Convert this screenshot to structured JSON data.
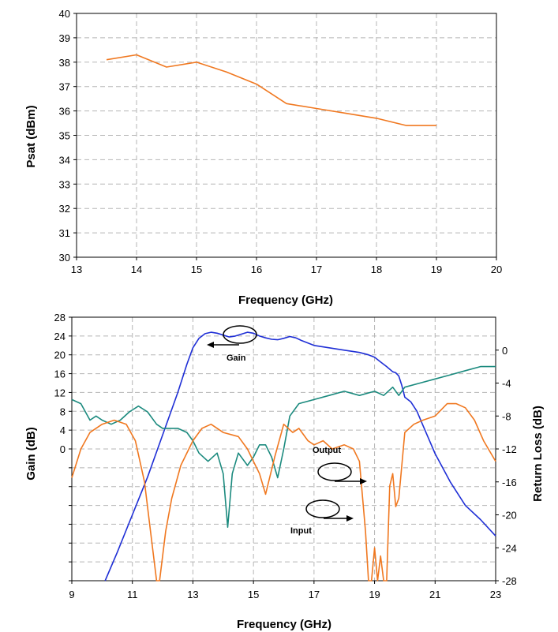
{
  "chart_data": [
    {
      "type": "line",
      "xlabel": "Frequency (GHz)",
      "ylabel": "Psat (dBm)",
      "xlim": [
        13,
        20
      ],
      "ylim": [
        30,
        40
      ],
      "xticks": [
        13,
        14,
        15,
        16,
        17,
        18,
        19,
        20
      ],
      "yticks": [
        30,
        31,
        32,
        33,
        34,
        35,
        36,
        37,
        38,
        39,
        40
      ],
      "grid": true,
      "series": [
        {
          "color": "#f07820",
          "x": [
            13.5,
            14,
            14.5,
            15,
            15.5,
            16,
            16.5,
            17,
            17.5,
            18,
            18.5,
            19
          ],
          "y": [
            38.1,
            38.3,
            37.8,
            38.0,
            37.6,
            37.1,
            36.3,
            36.1,
            35.9,
            35.7,
            35.4,
            35.4
          ]
        }
      ]
    },
    {
      "type": "line",
      "xlabel": "Frequency (GHz)",
      "ylabel": "Gain (dB)",
      "y2label": "Return Loss (dB)",
      "xlim": [
        9,
        23
      ],
      "ylim": [
        -28,
        28
      ],
      "y2lim": [
        -28,
        4
      ],
      "xticks": [
        9,
        11,
        13,
        15,
        17,
        19,
        21,
        23
      ],
      "yticks_left": [
        0,
        4,
        8,
        12,
        16,
        20,
        24,
        28
      ],
      "yticks_right": [
        0,
        -4,
        -8,
        -12,
        -16,
        -20,
        -24,
        -28
      ],
      "grid": true,
      "series": [
        {
          "name": "Gain",
          "axis": "left",
          "color": "#1f2fd6",
          "x": [
            10.1,
            10.5,
            11.0,
            11.5,
            12.0,
            12.5,
            12.8,
            13.0,
            13.2,
            13.4,
            13.6,
            13.8,
            14.0,
            14.2,
            14.4,
            14.6,
            14.8,
            15.0,
            15.2,
            15.4,
            15.6,
            15.8,
            16.0,
            16.2,
            16.4,
            16.6,
            16.8,
            17.0,
            17.5,
            18.0,
            18.5,
            18.8,
            19.0,
            19.2,
            19.4,
            19.6,
            19.7,
            19.8,
            19.9,
            20.0,
            20.2,
            20.4,
            20.6,
            20.8,
            21.0,
            21.5,
            22.0,
            22.5,
            23.0
          ],
          "y": [
            -28,
            -22,
            -14,
            -6,
            3,
            12,
            18,
            21.5,
            23.5,
            24.5,
            24.8,
            24.6,
            24.2,
            23.8,
            24.0,
            24.4,
            24.8,
            24.6,
            24.0,
            23.6,
            23.3,
            23.2,
            23.5,
            23.9,
            23.6,
            23.0,
            22.5,
            22.0,
            21.5,
            21.0,
            20.5,
            20.0,
            19.5,
            18.5,
            17.5,
            16.4,
            16.2,
            15.5,
            13.5,
            11.0,
            10.0,
            8.0,
            5.0,
            2.0,
            -1.0,
            -7.0,
            -12.0,
            -15.0,
            -18.5
          ]
        },
        {
          "name": "Output",
          "axis": "right",
          "color": "#1b8a7e",
          "x": [
            9.0,
            9.3,
            9.6,
            9.8,
            10.0,
            10.3,
            10.6,
            10.9,
            11.2,
            11.5,
            11.8,
            12.0,
            12.5,
            12.8,
            13.0,
            13.2,
            13.5,
            13.8,
            14.0,
            14.15,
            14.3,
            14.5,
            14.8,
            15.0,
            15.2,
            15.4,
            15.6,
            15.8,
            16.0,
            16.2,
            16.5,
            17.0,
            17.5,
            18.0,
            18.5,
            19.0,
            19.3,
            19.6,
            19.8,
            20.0,
            20.5,
            21.0,
            21.5,
            22.0,
            22.5,
            23.0
          ],
          "y": [
            -6.0,
            -6.5,
            -8.5,
            -8.0,
            -8.5,
            -9.0,
            -8.5,
            -7.5,
            -6.8,
            -7.5,
            -9.0,
            -9.5,
            -9.5,
            -10.0,
            -11.0,
            -12.5,
            -13.5,
            -12.5,
            -15.0,
            -21.5,
            -15.0,
            -12.5,
            -14.0,
            -13.0,
            -11.5,
            -11.5,
            -13.0,
            -15.5,
            -12.0,
            -8.0,
            -6.5,
            -6.0,
            -5.5,
            -5.0,
            -5.5,
            -5.0,
            -5.5,
            -4.5,
            -5.5,
            -4.5,
            -4.0,
            -3.5,
            -3.0,
            -2.5,
            -2.0,
            -2.0
          ]
        },
        {
          "name": "Input",
          "axis": "right",
          "color": "#f07820",
          "x": [
            9.0,
            9.3,
            9.6,
            10.0,
            10.4,
            10.8,
            11.1,
            11.4,
            11.6,
            11.8,
            11.9,
            12.1,
            12.3,
            12.6,
            13.0,
            13.3,
            13.6,
            14.0,
            14.5,
            14.8,
            15.0,
            15.2,
            15.4,
            15.7,
            16.0,
            16.3,
            16.5,
            16.8,
            17.0,
            17.3,
            17.6,
            18.0,
            18.3,
            18.5,
            18.7,
            18.8,
            18.9,
            19.0,
            19.1,
            19.2,
            19.3,
            19.4,
            19.5,
            19.6,
            19.7,
            19.8,
            19.9,
            20.0,
            20.3,
            20.6,
            21.0,
            21.4,
            21.7,
            22.0,
            22.3,
            22.6,
            23.0
          ],
          "y": [
            -15.5,
            -12.0,
            -10.0,
            -9.0,
            -8.5,
            -9.0,
            -11.0,
            -16.0,
            -22.0,
            -28.0,
            -28.0,
            -22.0,
            -18.0,
            -14.0,
            -11.0,
            -9.5,
            -9.0,
            -10.0,
            -10.5,
            -12.0,
            -13.5,
            -15.0,
            -17.5,
            -13.0,
            -9.0,
            -10.0,
            -9.5,
            -11.0,
            -11.5,
            -11.0,
            -12.0,
            -11.5,
            -12.0,
            -13.5,
            -22.0,
            -28.0,
            -28.0,
            -24.0,
            -28.0,
            -25.0,
            -28.0,
            -28.0,
            -16.5,
            -15.0,
            -19.0,
            -18.0,
            -14.0,
            -10.0,
            -9.0,
            -8.5,
            -8.0,
            -6.5,
            -6.5,
            -7.0,
            -8.5,
            -11.0,
            -13.5
          ]
        }
      ],
      "annotations": [
        {
          "text": "Gain",
          "points_to": "left axis"
        },
        {
          "text": "Output",
          "points_to": "right axis"
        },
        {
          "text": "Input",
          "points_to": "right axis"
        }
      ]
    }
  ]
}
